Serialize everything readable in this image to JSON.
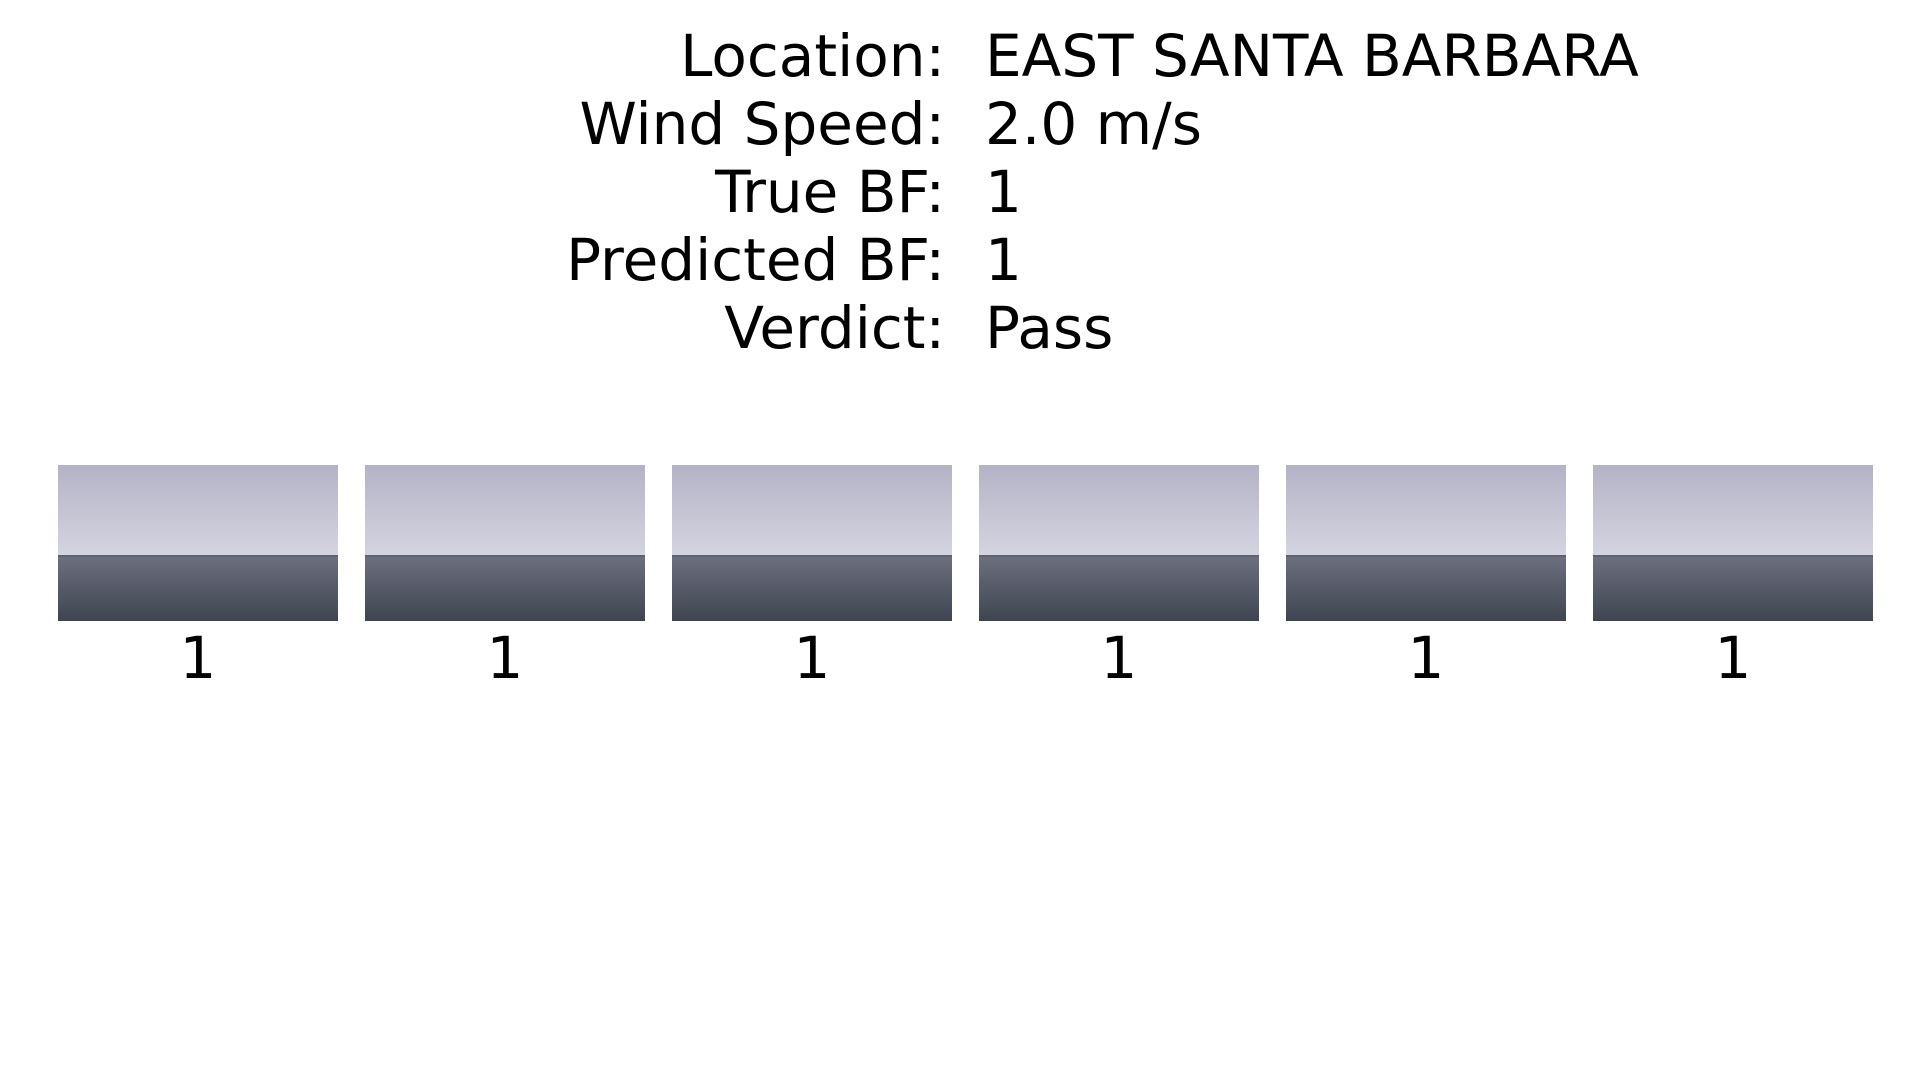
{
  "info": [
    {
      "label": "Location:",
      "value": "EAST SANTA BARBARA"
    },
    {
      "label": "Wind Speed:",
      "value": "2.0 m/s"
    },
    {
      "label": "True BF:",
      "value": "1"
    },
    {
      "label": "Predicted BF:",
      "value": "1"
    },
    {
      "label": "Verdict:",
      "value": "Pass"
    }
  ],
  "thumbnails": [
    {
      "caption": "1"
    },
    {
      "caption": "1"
    },
    {
      "caption": "1"
    },
    {
      "caption": "1"
    },
    {
      "caption": "1"
    },
    {
      "caption": "1"
    }
  ],
  "colors": {
    "sky_top": "#b4b2c6",
    "sky_bottom": "#d4d4e0",
    "sea_top": "#6e7080",
    "sea_bottom": "#3e4550"
  }
}
